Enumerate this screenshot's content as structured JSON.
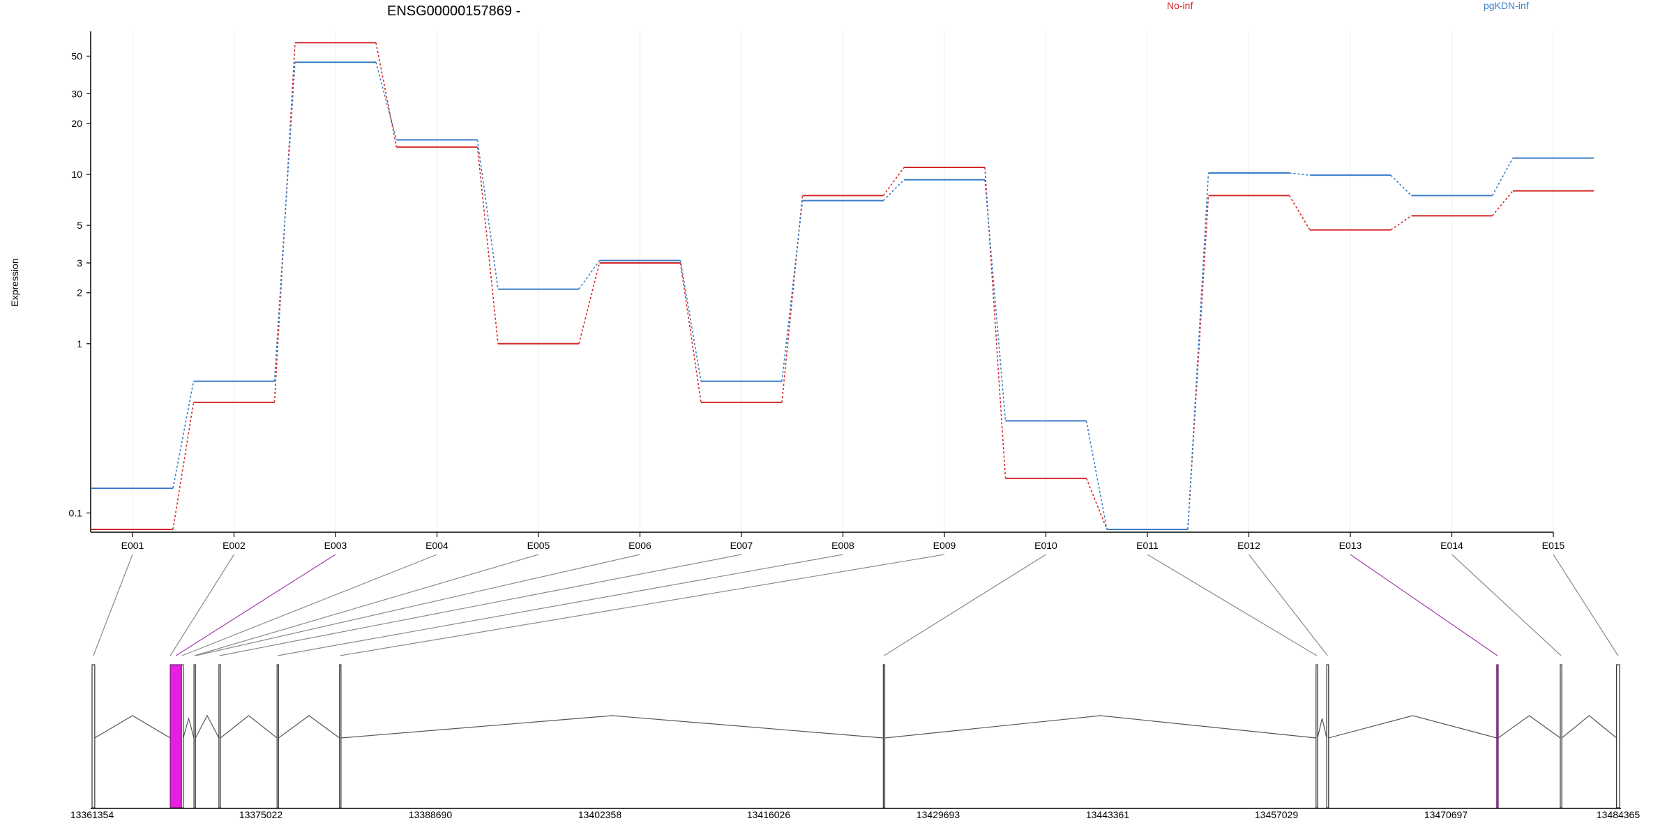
{
  "chart_data": {
    "type": "line",
    "title": "ENSG00000157869 -",
    "ylabel": "Expression",
    "xlabel": "",
    "y_scale": "log",
    "y_ticks": [
      0.1,
      1,
      2,
      3,
      5,
      10,
      20,
      30,
      50
    ],
    "categories": [
      "E001",
      "E002",
      "E003",
      "E004",
      "E005",
      "E006",
      "E007",
      "E008",
      "E009",
      "E010",
      "E011",
      "E012",
      "E013",
      "E014",
      "E015"
    ],
    "series": [
      {
        "name": "No-inf",
        "color": "#d62728",
        "values": [
          0.08,
          0.45,
          60,
          14.5,
          1.0,
          3.0,
          0.45,
          7.5,
          11.0,
          0.16,
          0.08,
          7.5,
          4.7,
          5.7,
          8.0
        ]
      },
      {
        "name": "pgKDN-inf",
        "color": "#3a7dc9",
        "values": [
          0.14,
          0.6,
          46,
          16.0,
          2.1,
          3.1,
          0.6,
          7.0,
          9.3,
          0.35,
          0.08,
          10.2,
          9.9,
          7.5,
          12.5
        ]
      }
    ],
    "legend_position": "top-right",
    "grid": "vertical-light",
    "gene_model": {
      "coordinate_ticks": [
        "13361354",
        "13375022",
        "13388690",
        "13402358",
        "13416026",
        "13429693",
        "13443361",
        "13457029",
        "13470697",
        "13484365"
      ],
      "x_range": [
        13361354,
        13484365
      ],
      "exons": [
        {
          "start": 13361354,
          "end": 13361570,
          "highlight": false
        },
        {
          "start": 13367650,
          "end": 13368550,
          "highlight": true
        },
        {
          "start": 13368550,
          "end": 13368700,
          "highlight": false
        },
        {
          "start": 13369560,
          "end": 13369680,
          "highlight": false
        },
        {
          "start": 13371570,
          "end": 13371690,
          "highlight": false
        },
        {
          "start": 13376250,
          "end": 13376370,
          "highlight": false
        },
        {
          "start": 13381280,
          "end": 13381400,
          "highlight": false
        },
        {
          "start": 13425070,
          "end": 13425190,
          "highlight": false
        },
        {
          "start": 13459920,
          "end": 13460040,
          "highlight": false
        },
        {
          "start": 13460780,
          "end": 13460930,
          "highlight": false
        },
        {
          "start": 13474470,
          "end": 13474590,
          "highlight": true
        },
        {
          "start": 13479590,
          "end": 13479710,
          "highlight": false
        },
        {
          "start": 13484120,
          "end": 13484365,
          "highlight": false
        }
      ],
      "exon_map": [
        {
          "bin": "E001",
          "pos": 13361460,
          "highlight": false
        },
        {
          "bin": "E002",
          "pos": 13367650,
          "highlight": false
        },
        {
          "bin": "E003",
          "pos": 13368100,
          "highlight": true
        },
        {
          "bin": "E004",
          "pos": 13368600,
          "highlight": false
        },
        {
          "bin": "E005",
          "pos": 13369600,
          "highlight": false
        },
        {
          "bin": "E006",
          "pos": 13369700,
          "highlight": false
        },
        {
          "bin": "E007",
          "pos": 13371620,
          "highlight": false
        },
        {
          "bin": "E008",
          "pos": 13376300,
          "highlight": false
        },
        {
          "bin": "E009",
          "pos": 13381330,
          "highlight": false
        },
        {
          "bin": "E010",
          "pos": 13425120,
          "highlight": false
        },
        {
          "bin": "E011",
          "pos": 13459980,
          "highlight": false
        },
        {
          "bin": "E012",
          "pos": 13460850,
          "highlight": false
        },
        {
          "bin": "E013",
          "pos": 13474530,
          "highlight": true
        },
        {
          "bin": "E014",
          "pos": 13479650,
          "highlight": false
        },
        {
          "bin": "E015",
          "pos": 13484240,
          "highlight": false
        }
      ],
      "highlight_color": "#e81fe0"
    }
  }
}
